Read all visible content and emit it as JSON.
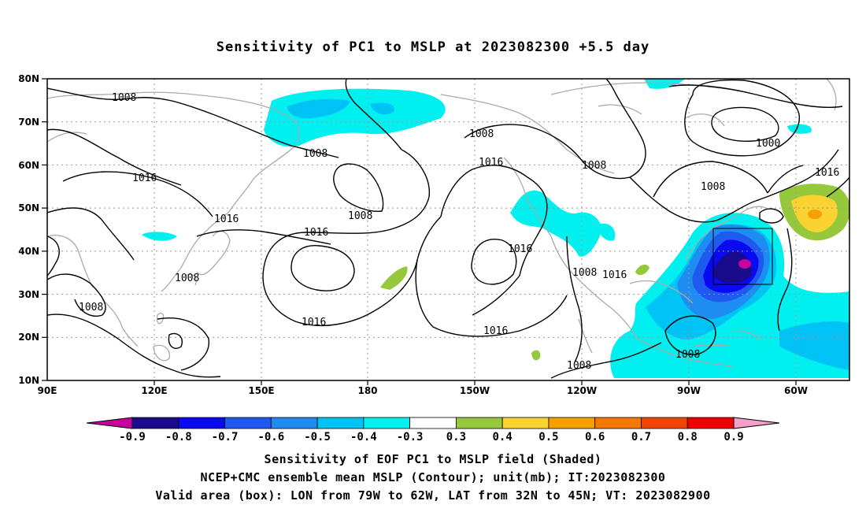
{
  "title": "Sensitivity of PC1 to MSLP at 2023082300 +5.5 day",
  "lat_labels": [
    "80N",
    "70N",
    "60N",
    "50N",
    "40N",
    "30N",
    "20N",
    "10N"
  ],
  "lon_labels": [
    "90E",
    "120E",
    "150E",
    "180",
    "150W",
    "120W",
    "90W",
    "60W"
  ],
  "contour_labels": [
    "1008",
    "1016",
    "1008",
    "1008",
    "1016",
    "1008",
    "1016",
    "1008",
    "1008",
    "1016",
    "1016",
    "1016",
    "1008",
    "1016",
    "1016",
    "1016",
    "1000",
    "1016",
    "1008",
    "1008",
    "1008",
    "1008",
    "1008"
  ],
  "colorbar": {
    "tick_labels": [
      "-0.9",
      "-0.8",
      "-0.7",
      "-0.6",
      "-0.5",
      "-0.4",
      "-0.3",
      "0.3",
      "0.4",
      "0.5",
      "0.6",
      "0.7",
      "0.8",
      "0.9"
    ],
    "colors": [
      "#1a0a8c",
      "#0a0af0",
      "#1e5af0",
      "#1e8cf0",
      "#00c3f5",
      "#00f0f0",
      "#ffffff",
      "#96c83c",
      "#fad232",
      "#f5a000",
      "#f57800",
      "#f04600",
      "#f00000"
    ],
    "left_arrow_color": "#c800a0",
    "right_arrow_color": "#f5a0c8"
  },
  "captions": [
    "Sensitivity of EOF PC1 to MSLP field (Shaded)",
    "NCEP+CMC ensemble mean MSLP (Contour); unit(mb); IT:2023082300",
    "Valid area (box): LON from 79W to 62W, LAT from 32N to 45N; VT: 2023082900"
  ]
}
